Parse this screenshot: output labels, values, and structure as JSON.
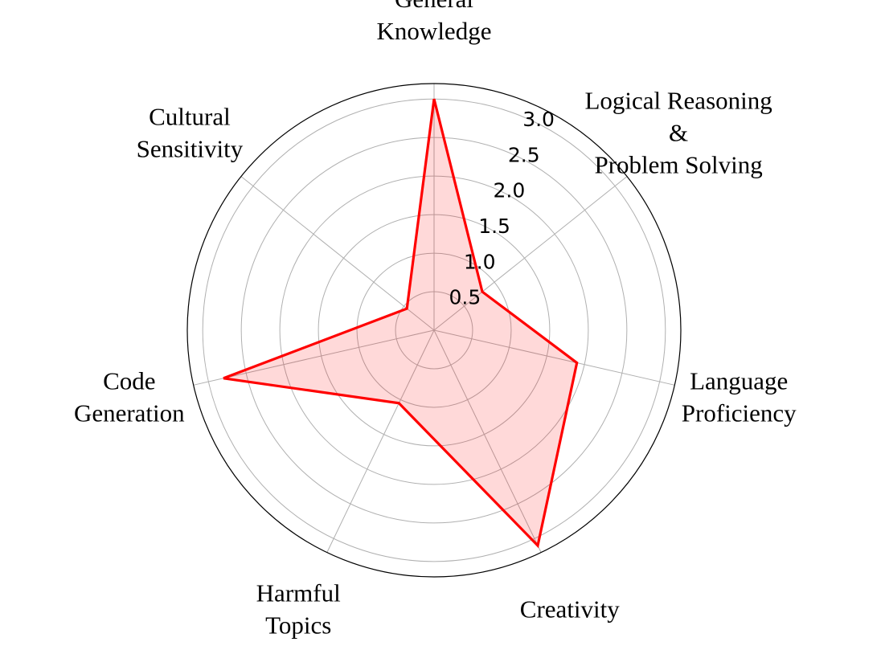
{
  "chart_data": {
    "type": "radar",
    "axes": [
      {
        "lines": [
          "General",
          "Knowledge"
        ]
      },
      {
        "lines": [
          "Logical Reasoning",
          "&",
          "Problem Solving"
        ]
      },
      {
        "lines": [
          "Language",
          "Proficiency"
        ]
      },
      {
        "lines": [
          "Creativity"
        ]
      },
      {
        "lines": [
          "Harmful",
          "Topics"
        ]
      },
      {
        "lines": [
          "Code",
          "Generation"
        ]
      },
      {
        "lines": [
          "Cultural",
          "Sensitivity"
        ]
      }
    ],
    "series": [
      {
        "values": [
          3.0,
          0.8,
          1.9,
          3.1,
          1.05,
          2.8,
          0.45
        ]
      }
    ],
    "r_ticks": [
      "0.5",
      "1.0",
      "1.5",
      "2.0",
      "2.5",
      "3.0"
    ],
    "r_tick_values": [
      0.5,
      1.0,
      1.5,
      2.0,
      2.5,
      3.0
    ],
    "rlim": [
      0,
      3.2
    ],
    "grid": true,
    "colors": {
      "line": "#ff0000",
      "fill": "#ff0000",
      "grid": "#b0b0b0",
      "outline": "#000000"
    }
  }
}
